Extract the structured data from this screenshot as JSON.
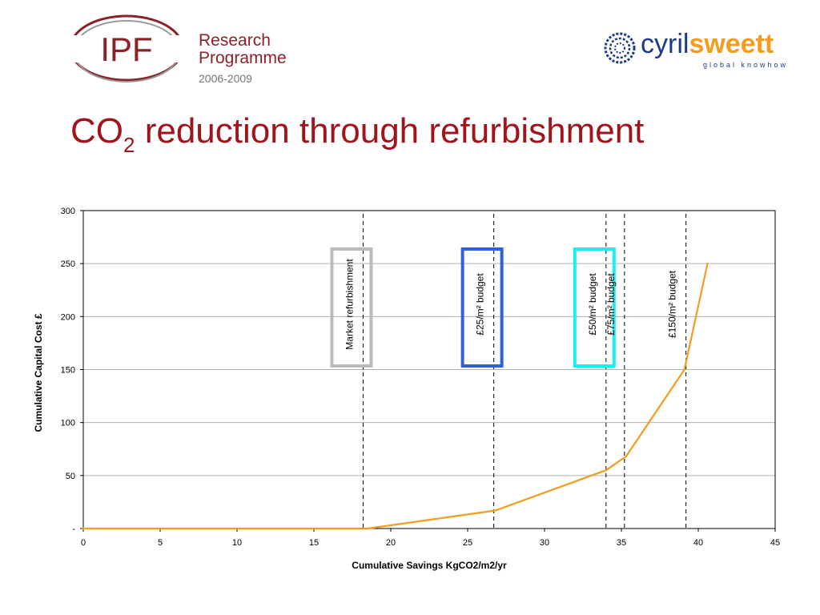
{
  "header": {
    "ipf_logo_text": "IPF",
    "programme_title": "Research Programme",
    "programme_line1": "Research",
    "programme_line2": "Programme",
    "programme_years": "2006-2009",
    "cs_brand_part1": "cyril",
    "cs_brand_part2": "sweett",
    "cs_tagline": "global knowhow"
  },
  "slide": {
    "title_main": "CO",
    "title_sub": "2",
    "title_rest": " reduction through refurbishment"
  },
  "colors": {
    "title": "#a0141c",
    "series_line": "#f39c1e",
    "box_market": "#bbbbbb",
    "box_25": "#3060e0",
    "box_50": "#18f0f0",
    "ipf_maroon": "#8a2227",
    "cs_blue": "#1a3a8a",
    "cs_orange": "#f39c1e"
  },
  "chart_data": {
    "type": "line",
    "xlabel": "Cumulative Savings KgCO2/m2/yr",
    "ylabel": "Cumulative Capital Cost £",
    "xlim": [
      0,
      45
    ],
    "ylim": [
      0,
      300
    ],
    "x_ticks": [
      0,
      5,
      10,
      15,
      20,
      25,
      30,
      35,
      40,
      45
    ],
    "y_ticks": [
      0,
      50,
      100,
      150,
      200,
      250,
      300
    ],
    "y_tick_labels": [
      "-",
      "50",
      "100",
      "150",
      "200",
      "250",
      "300"
    ],
    "grid": true,
    "series": [
      {
        "x": [
          0,
          18.5,
          26.8,
          34.0,
          35.3,
          39.1,
          40.6
        ],
        "y": [
          0,
          0,
          17,
          55,
          68,
          150,
          250
        ]
      }
    ],
    "annotations": [
      {
        "label": "Market refurbishment",
        "x": 18.2,
        "boxed": true,
        "box_color": "#bbbbbb"
      },
      {
        "label": "£25/m² budget",
        "x": 26.7,
        "boxed": true,
        "box_color": "#3060e0"
      },
      {
        "label": "£50/m² budget",
        "x": 34.0,
        "boxed": true,
        "box_color": "#18f0f0"
      },
      {
        "label": "£75/m² budget",
        "x": 35.2,
        "boxed": false
      },
      {
        "label": "£150/m² budget",
        "x": 39.2,
        "boxed": false
      }
    ]
  }
}
